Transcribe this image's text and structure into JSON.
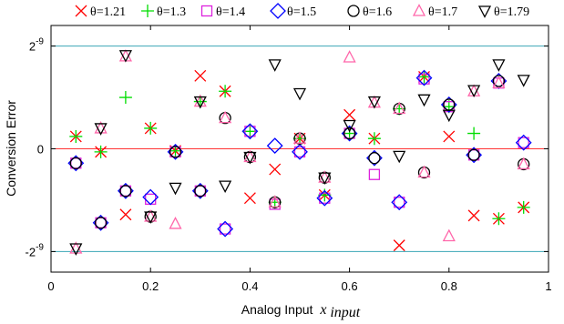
{
  "chart_data": {
    "type": "scatter",
    "title": "",
    "xlabel_text": "Analog Input",
    "xlabel_var": "x",
    "xlabel_sub": "input",
    "ylabel": "Conversion Error",
    "xlim": [
      0,
      1
    ],
    "ylim": [
      -1.2,
      1.2
    ],
    "x_ticks": [
      0,
      0.2,
      0.4,
      0.6,
      0.8,
      1
    ],
    "x_tick_labels": [
      "0",
      "0.2",
      "0.4",
      "0.6",
      "0.8",
      "1"
    ],
    "y_ticks": [
      1,
      0,
      -1
    ],
    "y_tick_base": [
      "2",
      "0",
      "-2"
    ],
    "y_tick_exp": [
      "-9",
      "",
      "-9"
    ],
    "reference_lines": [
      {
        "y": 1,
        "color": "#3aa6b4"
      },
      {
        "y": 0,
        "color": "#ff3333"
      },
      {
        "y": -1,
        "color": "#3aa6b4"
      }
    ],
    "legend_position": "top",
    "series": [
      {
        "name": "θ=1.21",
        "marker": "x",
        "color": "#ff0000",
        "x": [
          0.05,
          0.1,
          0.15,
          0.2,
          0.25,
          0.3,
          0.35,
          0.4,
          0.45,
          0.5,
          0.55,
          0.6,
          0.65,
          0.7,
          0.75,
          0.8,
          0.85,
          0.9,
          0.95
        ],
        "y": [
          0.12,
          -0.03,
          -0.64,
          0.2,
          -0.02,
          0.71,
          0.56,
          -0.48,
          -0.2,
          0.1,
          -0.45,
          0.33,
          0.1,
          -0.94,
          0.7,
          0.12,
          -0.65,
          -0.68,
          -0.57
        ]
      },
      {
        "name": "θ=1.3",
        "marker": "+",
        "color": "#00dd00",
        "x": [
          0.05,
          0.1,
          0.15,
          0.2,
          0.25,
          0.3,
          0.35,
          0.4,
          0.45,
          0.5,
          0.55,
          0.6,
          0.65,
          0.7,
          0.75,
          0.8,
          0.85,
          0.9,
          0.95
        ],
        "y": [
          0.12,
          -0.03,
          0.5,
          0.2,
          -0.02,
          0.46,
          0.56,
          0.17,
          -0.52,
          0.1,
          -0.45,
          0.15,
          0.1,
          0.39,
          0.7,
          0.41,
          0.15,
          -0.68,
          -0.57
        ]
      },
      {
        "name": "θ=1.4",
        "marker": "square",
        "color": "#dd22dd",
        "x": [
          0.05,
          0.1,
          0.15,
          0.2,
          0.25,
          0.3,
          0.35,
          0.4,
          0.45,
          0.5,
          0.55,
          0.6,
          0.65,
          0.7,
          0.75,
          0.8,
          0.85,
          0.9,
          0.95
        ],
        "y": [
          -0.14,
          -0.72,
          -0.41,
          -0.49,
          -0.03,
          -0.41,
          -0.78,
          0.17,
          -0.54,
          -0.03,
          -0.48,
          0.15,
          -0.25,
          -0.52,
          0.68,
          0.41,
          -0.06,
          0.64,
          0.06
        ]
      },
      {
        "name": "θ=1.5",
        "marker": "diamond",
        "color": "#0000ff",
        "x": [
          0.05,
          0.1,
          0.15,
          0.2,
          0.25,
          0.3,
          0.35,
          0.4,
          0.45,
          0.5,
          0.55,
          0.6,
          0.65,
          0.7,
          0.75,
          0.8,
          0.85,
          0.9,
          0.95
        ],
        "y": [
          -0.14,
          -0.72,
          -0.41,
          -0.47,
          -0.03,
          -0.41,
          -0.78,
          0.17,
          0.03,
          -0.03,
          -0.48,
          0.15,
          -0.09,
          -0.52,
          0.69,
          0.43,
          -0.06,
          0.66,
          0.06
        ]
      },
      {
        "name": "θ=1.6",
        "marker": "circle",
        "color": "#000000",
        "x": [
          0.05,
          0.1,
          0.15,
          0.2,
          0.25,
          0.3,
          0.35,
          0.4,
          0.45,
          0.5,
          0.55,
          0.6,
          0.65,
          0.7,
          0.75,
          0.8,
          0.85,
          0.9,
          0.95
        ],
        "y": [
          -0.14,
          -0.72,
          -0.41,
          -0.66,
          -0.03,
          -0.41,
          0.3,
          -0.08,
          -0.52,
          0.1,
          -0.28,
          0.15,
          -0.09,
          0.39,
          -0.23,
          0.43,
          -0.06,
          0.66,
          -0.15
        ]
      },
      {
        "name": "θ=1.7",
        "marker": "triangle-up",
        "color": "#ff66aa",
        "x": [
          0.05,
          0.1,
          0.15,
          0.2,
          0.25,
          0.3,
          0.35,
          0.4,
          0.45,
          0.5,
          0.55,
          0.6,
          0.65,
          0.7,
          0.75,
          0.8,
          0.85,
          0.9,
          0.95
        ],
        "y": [
          -0.97,
          0.2,
          0.9,
          -0.66,
          -0.73,
          0.46,
          0.3,
          -0.08,
          -0.52,
          0.1,
          -0.28,
          0.89,
          0.45,
          0.39,
          -0.23,
          -0.85,
          0.56,
          0.64,
          -0.15
        ]
      },
      {
        "name": "θ=1.79",
        "marker": "triangle-down",
        "color": "#000000",
        "x": [
          0.05,
          0.1,
          0.15,
          0.2,
          0.25,
          0.3,
          0.35,
          0.4,
          0.45,
          0.5,
          0.55,
          0.6,
          0.65,
          0.7,
          0.75,
          0.8,
          0.85,
          0.9,
          0.95
        ],
        "y": [
          -0.97,
          0.2,
          0.91,
          -0.66,
          -0.38,
          0.46,
          -0.36,
          -0.08,
          0.82,
          0.54,
          -0.28,
          0.23,
          0.46,
          -0.07,
          0.48,
          0.33,
          0.57,
          0.82,
          0.67
        ]
      }
    ]
  }
}
